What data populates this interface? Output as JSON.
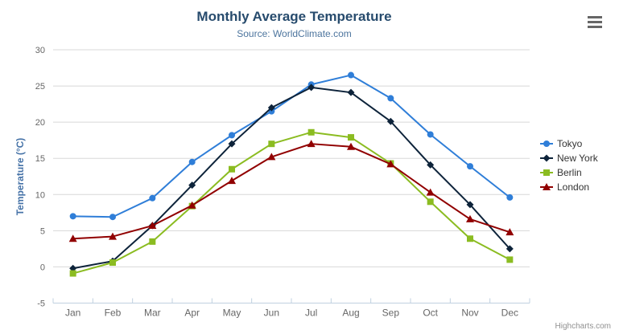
{
  "header": {
    "menu_icon": "hamburger-icon"
  },
  "credits": {
    "label": "Highcharts.com"
  },
  "colors": {
    "title": "#274b6d",
    "subtitle": "#4d759e",
    "axis_label": "#666666",
    "yaxis_title": "#4572a7",
    "legend_text": "#333333",
    "gridline": "#d8d8d8",
    "axis_line": "#c0d0e0",
    "credits": "#909090"
  },
  "chart_data": {
    "type": "line",
    "title": "Monthly Average Temperature",
    "subtitle": "Source: WorldClimate.com",
    "categories": [
      "Jan",
      "Feb",
      "Mar",
      "Apr",
      "May",
      "Jun",
      "Jul",
      "Aug",
      "Sep",
      "Oct",
      "Nov",
      "Dec"
    ],
    "xlabel": "",
    "ylabel": "Temperature (°C)",
    "ylim": [
      -5,
      30
    ],
    "ytick_interval": 5,
    "yticks": [
      -5,
      0,
      5,
      10,
      15,
      20,
      25,
      30
    ],
    "grid": "horizontal",
    "legend_position": "right",
    "series": [
      {
        "name": "Tokyo",
        "color": "#2f7ed8",
        "marker": "circle",
        "values": [
          7.0,
          6.9,
          9.5,
          14.5,
          18.2,
          21.5,
          25.2,
          26.5,
          23.3,
          18.3,
          13.9,
          9.6
        ]
      },
      {
        "name": "New York",
        "color": "#0d233a",
        "marker": "diamond",
        "values": [
          -0.2,
          0.8,
          5.7,
          11.3,
          17.0,
          22.0,
          24.8,
          24.1,
          20.1,
          14.1,
          8.6,
          2.5
        ]
      },
      {
        "name": "Berlin",
        "color": "#8bbc21",
        "marker": "square",
        "values": [
          -0.9,
          0.6,
          3.5,
          8.4,
          13.5,
          17.0,
          18.6,
          17.9,
          14.3,
          9.0,
          3.9,
          1.0
        ]
      },
      {
        "name": "London",
        "color": "#910000",
        "marker": "triangle",
        "values": [
          3.9,
          4.2,
          5.7,
          8.5,
          11.9,
          15.2,
          17.0,
          16.6,
          14.2,
          10.3,
          6.6,
          4.8
        ]
      }
    ]
  }
}
